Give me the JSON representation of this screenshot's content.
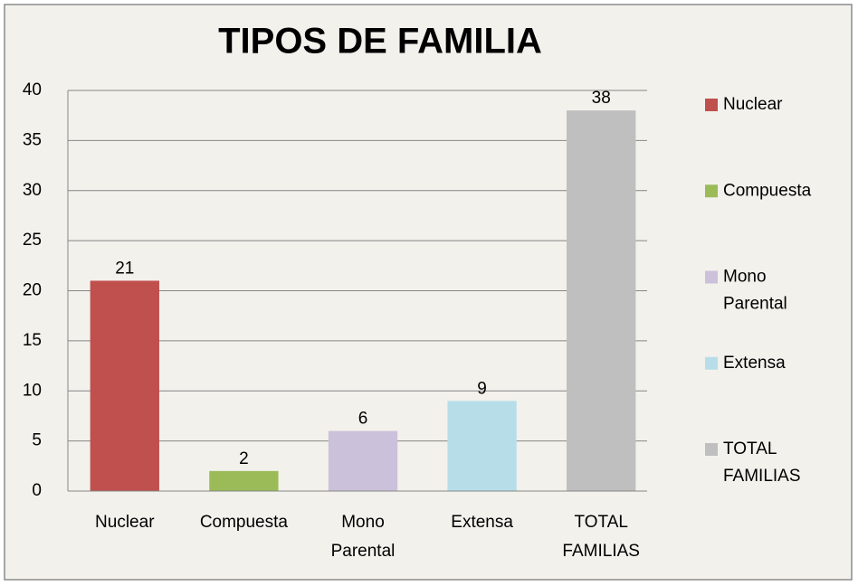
{
  "chart_data": {
    "type": "bar",
    "title": "TIPOS DE FAMILIA",
    "categories": [
      "Nuclear",
      "Compuesta",
      "Mono Parental",
      "Extensa",
      "TOTAL FAMILIAS"
    ],
    "values": [
      21,
      2,
      6,
      9,
      38
    ],
    "colors": [
      "#c0504d",
      "#9bbb59",
      "#ccc1da",
      "#b7dee8",
      "#bfbfbf"
    ],
    "ylim": [
      0,
      40
    ],
    "yticks": [
      0,
      5,
      10,
      15,
      20,
      25,
      30,
      35,
      40
    ],
    "grid": true,
    "legend": "right"
  }
}
